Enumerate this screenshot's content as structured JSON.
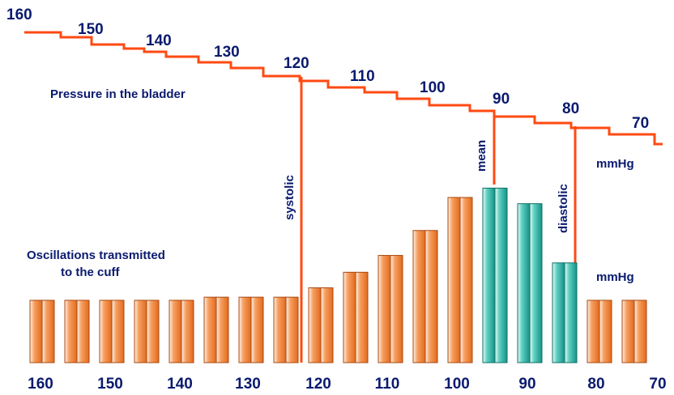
{
  "colors": {
    "pressure_line": "#ff4a12",
    "bar_orange": "#f47a2a",
    "bar_teal": "#1aa89c",
    "text": "#0a1a6e"
  },
  "texts": {
    "pressure_label": "Pressure in the bladder",
    "oscillation_label_line1": "Oscillations transmitted",
    "oscillation_label_line2": "to the cuff",
    "unit_top": "mmHg",
    "unit_bottom": "mmHg",
    "systolic": "systolic",
    "mean": "mean",
    "diastolic": "diastolic"
  },
  "pressure_labels": [
    "160",
    "150",
    "140",
    "130",
    "120",
    "110",
    "100",
    "90",
    "80",
    "70"
  ],
  "bottom_axis": [
    "160",
    "150",
    "140",
    "130",
    "120",
    "110",
    "100",
    "90",
    "80",
    "70"
  ],
  "bars": [
    {
      "pressure": 160,
      "amplitude": 1.0,
      "color": "orange"
    },
    {
      "pressure": 155,
      "amplitude": 1.0,
      "color": "orange"
    },
    {
      "pressure": 150,
      "amplitude": 1.0,
      "color": "orange"
    },
    {
      "pressure": 145,
      "amplitude": 1.0,
      "color": "orange"
    },
    {
      "pressure": 140,
      "amplitude": 1.0,
      "color": "orange"
    },
    {
      "pressure": 135,
      "amplitude": 1.05,
      "color": "orange"
    },
    {
      "pressure": 130,
      "amplitude": 1.05,
      "color": "orange"
    },
    {
      "pressure": 125,
      "amplitude": 1.05,
      "color": "orange"
    },
    {
      "pressure": 120,
      "amplitude": 1.2,
      "color": "orange"
    },
    {
      "pressure": 115,
      "amplitude": 1.45,
      "color": "orange"
    },
    {
      "pressure": 110,
      "amplitude": 1.72,
      "color": "orange"
    },
    {
      "pressure": 105,
      "amplitude": 2.12,
      "color": "orange"
    },
    {
      "pressure": 100,
      "amplitude": 2.65,
      "color": "orange"
    },
    {
      "pressure": 95,
      "amplitude": 2.8,
      "color": "teal"
    },
    {
      "pressure": 90,
      "amplitude": 2.55,
      "color": "teal"
    },
    {
      "pressure": 85,
      "amplitude": 1.6,
      "color": "teal"
    },
    {
      "pressure": 80,
      "amplitude": 1.0,
      "color": "orange"
    },
    {
      "pressure": 75,
      "amplitude": 1.0,
      "color": "orange"
    }
  ]
}
